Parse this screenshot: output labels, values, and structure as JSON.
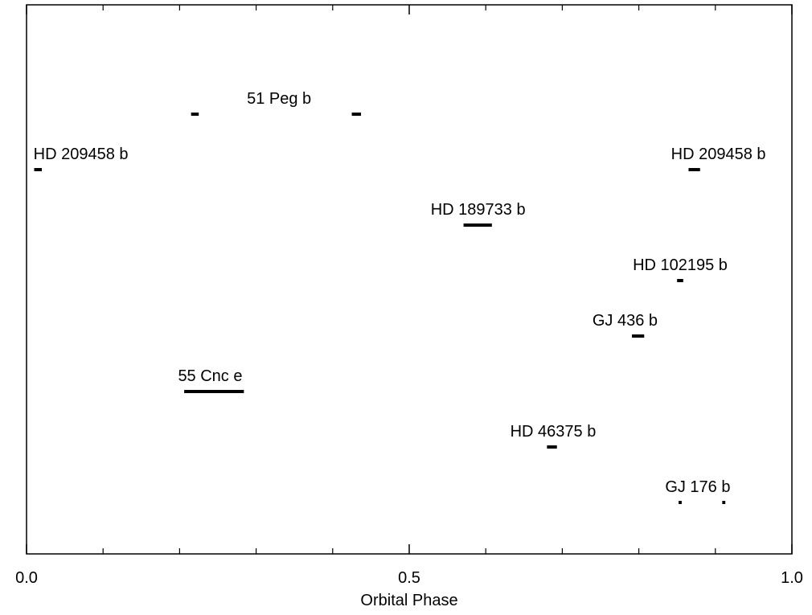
{
  "chart_data": {
    "type": "scatter",
    "title": "",
    "xlabel": "Orbital Phase",
    "ylabel": "",
    "xlim": [
      0.0,
      1.0
    ],
    "xticks": [
      {
        "value": 0.0,
        "label": "0.0"
      },
      {
        "value": 0.5,
        "label": "0.5"
      },
      {
        "value": 1.0,
        "label": "1.0"
      }
    ],
    "minor_xticks": [
      0.1,
      0.2,
      0.3,
      0.4,
      0.6,
      0.7,
      0.8,
      0.9
    ],
    "grid": false,
    "series": [
      {
        "name": "51 Peg b",
        "row": 1,
        "segments": [
          [
            0.215,
            0.225
          ],
          [
            0.425,
            0.437
          ]
        ]
      },
      {
        "name": "HD 209458 b",
        "row": 2,
        "segments": [
          [
            0.01,
            0.02
          ],
          [
            0.865,
            0.88
          ]
        ]
      },
      {
        "name": "HD 189733 b",
        "row": 3,
        "segments": [
          [
            0.571,
            0.608
          ]
        ]
      },
      {
        "name": "HD 102195 b",
        "row": 4,
        "segments": [
          [
            0.85,
            0.858
          ]
        ]
      },
      {
        "name": "GJ 436 b",
        "row": 5,
        "segments": [
          [
            0.791,
            0.807
          ]
        ]
      },
      {
        "name": "55 Cnc e",
        "row": 6,
        "segments": [
          [
            0.206,
            0.284
          ]
        ]
      },
      {
        "name": "HD 46375 b",
        "row": 7,
        "segments": [
          [
            0.68,
            0.693
          ]
        ]
      },
      {
        "name": "GJ 176 b",
        "row": 8,
        "segments": [
          [
            0.852,
            0.856
          ],
          [
            0.909,
            0.913
          ]
        ]
      }
    ],
    "labels": [
      {
        "text": "51 Peg b",
        "series": "51 Peg b",
        "x": 0.33
      },
      {
        "text": "HD 209458 b",
        "series": "HD 209458 b",
        "x": 0.071
      },
      {
        "text": "HD 209458 b",
        "series": "HD 209458 b",
        "x": 0.904
      },
      {
        "text": "HD 189733 b",
        "series": "HD 189733 b",
        "x": 0.59
      },
      {
        "text": "HD 102195 b",
        "series": "HD 102195 b",
        "x": 0.854
      },
      {
        "text": "GJ 436 b",
        "series": "GJ 436 b",
        "x": 0.782
      },
      {
        "text": "55 Cnc e",
        "series": "55 Cnc e",
        "x": 0.24
      },
      {
        "text": "HD 46375 b",
        "series": "HD 46375 b",
        "x": 0.688
      },
      {
        "text": "GJ 176 b",
        "series": "GJ 176 b",
        "x": 0.877
      }
    ]
  }
}
